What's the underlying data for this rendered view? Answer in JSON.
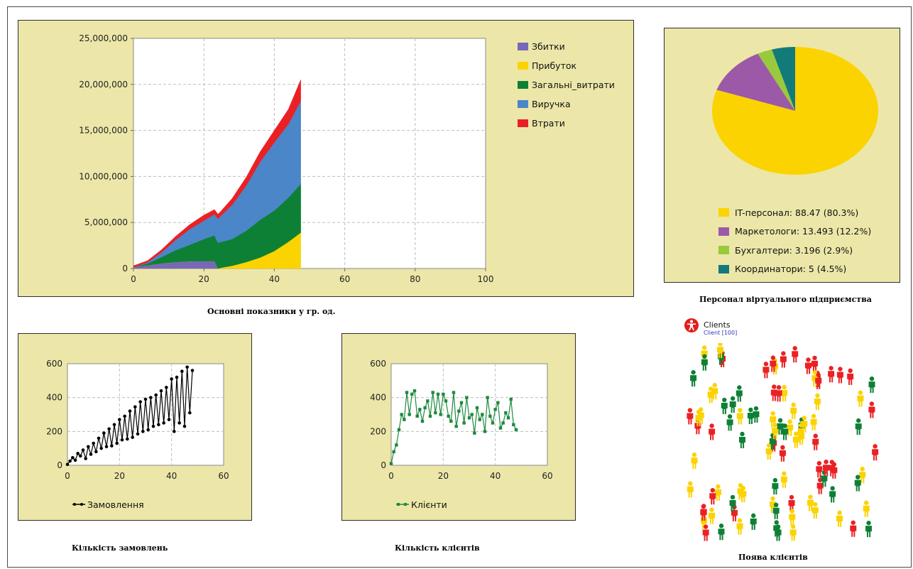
{
  "colors": {
    "panel_bg": "#ece7a8",
    "zbytky": "#7868b8",
    "prybutok": "#fbd300",
    "zahalni": "#0e8035",
    "vyruchka": "#4a86c8",
    "vtraty": "#ea2124",
    "orders_line": "#000000",
    "clients_line": "#1e8a3e",
    "it": "#fbd300",
    "marketing": "#9b59a8",
    "accountants": "#99c93c",
    "coordinators": "#137a7a"
  },
  "main_chart": {
    "caption": "Основні показники у гр. од.",
    "chart_data": {
      "type": "area",
      "xlim": [
        0,
        100
      ],
      "ylim": [
        0,
        25000000
      ],
      "x_ticks": [
        "0",
        "20",
        "40",
        "60",
        "80",
        "100"
      ],
      "y_ticks": [
        "0",
        "5,000,000",
        "10,000,000",
        "15,000,000",
        "20,000,000",
        "25,000,000"
      ],
      "x": [
        0,
        4,
        8,
        12,
        16,
        20,
        23,
        24,
        25,
        28,
        32,
        36,
        40,
        44,
        47.5
      ],
      "series": [
        {
          "name": "Збитки",
          "values": [
            150000,
            350000,
            550000,
            700000,
            780000,
            800000,
            800000,
            0,
            0,
            0,
            0,
            0,
            0,
            0,
            0
          ]
        },
        {
          "name": "Прибуток",
          "values": [
            0,
            0,
            0,
            0,
            0,
            0,
            0,
            0,
            100000,
            300000,
            700000,
            1200000,
            1900000,
            2900000,
            3900000
          ]
        },
        {
          "name": "Загальні_витрати",
          "values": [
            0,
            200000,
            700000,
            1300000,
            1800000,
            2400000,
            2800000,
            2800000,
            2800000,
            2900000,
            3400000,
            4100000,
            4400000,
            4800000,
            5300000
          ]
        },
        {
          "name": "Виручка",
          "values": [
            0,
            100000,
            500000,
            1100000,
            1700000,
            2000000,
            2300000,
            2600000,
            2900000,
            3700000,
            4900000,
            6300000,
            7400000,
            8000000,
            9000000
          ]
        },
        {
          "name": "Втрати",
          "values": [
            150000,
            200000,
            300000,
            400000,
            500000,
            600000,
            500000,
            500000,
            500000,
            700000,
            900000,
            1100000,
            1300000,
            1600000,
            2300000
          ]
        }
      ]
    }
  },
  "pie_chart": {
    "caption": "Персонал віртуального підприємства",
    "chart_data": {
      "type": "pie",
      "labels": [
        "IT-персонал",
        "Маркетологи",
        "Бухгалтери",
        "Координатори"
      ],
      "values": [
        88.47,
        13.493,
        3.196,
        5
      ],
      "legend": [
        "IT-персонал: 88.47 (80.3%)",
        "Маркетологи: 13.493 (12.2%)",
        "Бухгалтери: 3.196 (2.9%)",
        "Координатори: 5 (4.5%)"
      ]
    }
  },
  "orders_chart": {
    "caption": "Кількість замовлень",
    "chart_data": {
      "type": "line",
      "xlim": [
        0,
        60
      ],
      "ylim": [
        0,
        600
      ],
      "x_ticks": [
        "0",
        "20",
        "40",
        "60"
      ],
      "y_ticks": [
        "0",
        "200",
        "400",
        "600"
      ],
      "series": [
        {
          "name": "Замовлення",
          "x": [
            0,
            1,
            2,
            3,
            4,
            5,
            6,
            7,
            8,
            9,
            10,
            11,
            12,
            13,
            14,
            15,
            16,
            17,
            18,
            19,
            20,
            21,
            22,
            23,
            24,
            25,
            26,
            27,
            28,
            29,
            30,
            31,
            32,
            33,
            34,
            35,
            36,
            37,
            38,
            39,
            40,
            41,
            42,
            43,
            44,
            45,
            46,
            47,
            48
          ],
          "values": [
            5,
            25,
            45,
            30,
            70,
            55,
            90,
            40,
            110,
            65,
            130,
            80,
            160,
            100,
            190,
            110,
            215,
            115,
            240,
            130,
            270,
            150,
            290,
            155,
            320,
            165,
            345,
            185,
            375,
            200,
            390,
            210,
            400,
            230,
            415,
            240,
            440,
            250,
            460,
            270,
            510,
            200,
            520,
            250,
            555,
            230,
            580,
            310,
            560
          ]
        }
      ]
    }
  },
  "clients_chart": {
    "caption": "Кількість клієнтів",
    "chart_data": {
      "type": "line",
      "xlim": [
        0,
        60
      ],
      "ylim": [
        0,
        600
      ],
      "x_ticks": [
        "0",
        "20",
        "40",
        "60"
      ],
      "y_ticks": [
        "0",
        "200",
        "400",
        "600"
      ],
      "series": [
        {
          "name": "Клієнти",
          "x": [
            0,
            1,
            2,
            3,
            4,
            5,
            6,
            7,
            8,
            9,
            10,
            11,
            12,
            13,
            14,
            15,
            16,
            17,
            18,
            19,
            20,
            21,
            22,
            23,
            24,
            25,
            26,
            27,
            28,
            29,
            30,
            31,
            32,
            33,
            34,
            35,
            36,
            37,
            38,
            39,
            40,
            41,
            42,
            43,
            44,
            45,
            46,
            47,
            48
          ],
          "values": [
            10,
            80,
            120,
            210,
            300,
            270,
            430,
            300,
            420,
            440,
            290,
            330,
            260,
            340,
            380,
            290,
            430,
            310,
            420,
            300,
            420,
            380,
            290,
            260,
            430,
            230,
            320,
            370,
            250,
            400,
            280,
            300,
            190,
            340,
            270,
            300,
            200,
            400,
            290,
            250,
            330,
            370,
            220,
            250,
            310,
            280,
            390,
            240,
            210
          ]
        }
      ]
    }
  },
  "clients_view": {
    "caption": "Поява клієнтів",
    "title": "Clients",
    "subtitle": "Client [100]"
  }
}
